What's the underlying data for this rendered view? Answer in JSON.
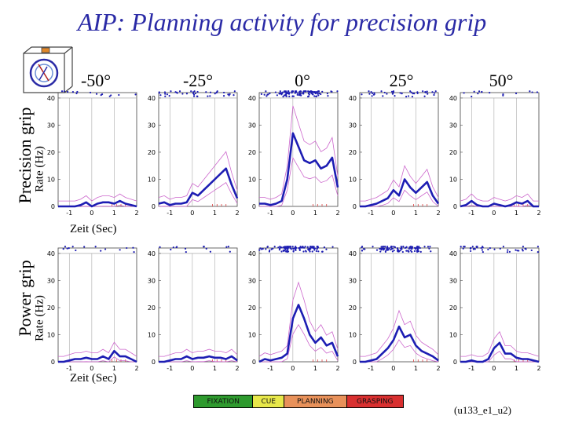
{
  "title": "AIP: Planning activity for precision grip",
  "row_labels": [
    "Precision grip",
    "Power grip"
  ],
  "y_axis_label": "Rate (Hz)",
  "x_axis_label": "Zeit (Sec)",
  "angles": [
    "-50°",
    "-25°",
    "0°",
    "25°",
    "50°"
  ],
  "legend": [
    {
      "label": "FIXATION",
      "color": "#2e9a2e"
    },
    {
      "label": "CUE",
      "color": "#e8e84a"
    },
    {
      "label": "PLANNING",
      "color": "#e8915a"
    },
    {
      "label": "GRASPING",
      "color": "#d93030"
    }
  ],
  "cell_id": "(u133_e1_u2)",
  "colors": {
    "rate": "#1d1db3",
    "ci": "#cc66cc",
    "raster": "#1d1db3",
    "events": "#d94040",
    "title": "#2a2aa6"
  },
  "chart_data": {
    "type": "line",
    "xlim": [
      -1.5,
      2
    ],
    "ylim": [
      0,
      42
    ],
    "xticks": [
      -1,
      0,
      1,
      2
    ],
    "yticks": [
      0,
      10,
      20,
      30,
      40
    ],
    "xlabel": "Zeit (Sec)",
    "ylabel": "Rate (Hz)",
    "x": [
      -1.5,
      -1.25,
      -1,
      -0.75,
      -0.5,
      -0.25,
      0,
      0.25,
      0.5,
      0.75,
      1,
      1.25,
      1.5,
      1.75,
      2
    ],
    "panels": [
      {
        "row": "Precision grip",
        "angle": "-50°",
        "rate": [
          0,
          0,
          0,
          0,
          0.5,
          1.5,
          0,
          1,
          1.5,
          1.5,
          1,
          2,
          1,
          0.5,
          0
        ],
        "raster": "sparse"
      },
      {
        "row": "Precision grip",
        "angle": "-25°",
        "rate": [
          1,
          1.5,
          0.5,
          1,
          1,
          1.5,
          5,
          4,
          6,
          8,
          10,
          12,
          14,
          8,
          3
        ],
        "raster": "medium"
      },
      {
        "row": "Precision grip",
        "angle": "0°",
        "rate": [
          1,
          1,
          0.5,
          1,
          2,
          10,
          27,
          22,
          17,
          16,
          17,
          14,
          15,
          18,
          7
        ],
        "raster": "dense"
      },
      {
        "row": "Precision grip",
        "angle": "25°",
        "rate": [
          0,
          0,
          0.5,
          1,
          2,
          3,
          6,
          4,
          10,
          7,
          5,
          7,
          9,
          4,
          1
        ],
        "raster": "medium"
      },
      {
        "row": "Precision grip",
        "angle": "50°",
        "rate": [
          0,
          0.5,
          2,
          0.5,
          0,
          0,
          1,
          0.5,
          0,
          0.5,
          1.5,
          1,
          2,
          0,
          0
        ],
        "raster": "sparse"
      },
      {
        "row": "Power grip",
        "angle": "-50°",
        "rate": [
          0,
          0,
          0.5,
          1,
          1,
          1.5,
          1,
          1,
          2,
          1,
          4,
          2,
          2,
          1,
          0
        ],
        "raster": "sparse"
      },
      {
        "row": "Power grip",
        "angle": "-25°",
        "rate": [
          0,
          0,
          0.5,
          1,
          1,
          2,
          1,
          1.5,
          1.5,
          2,
          1.5,
          1.5,
          1,
          2,
          0.5
        ],
        "raster": "sparse"
      },
      {
        "row": "Power grip",
        "angle": "0°",
        "rate": [
          0,
          1,
          0.5,
          1,
          1.5,
          3,
          16,
          21,
          16,
          10,
          7,
          9,
          6,
          7,
          2
        ],
        "raster": "dense"
      },
      {
        "row": "Power grip",
        "angle": "25°",
        "rate": [
          0,
          0,
          0.5,
          1,
          3,
          5,
          8,
          13,
          9,
          10,
          6,
          4,
          3,
          2,
          0.5
        ],
        "raster": "dense"
      },
      {
        "row": "Power grip",
        "angle": "50°",
        "rate": [
          0,
          0,
          0.5,
          0,
          0,
          1,
          5,
          7,
          3,
          3,
          1.5,
          1,
          1,
          0.5,
          0
        ],
        "raster": "medium"
      }
    ]
  }
}
